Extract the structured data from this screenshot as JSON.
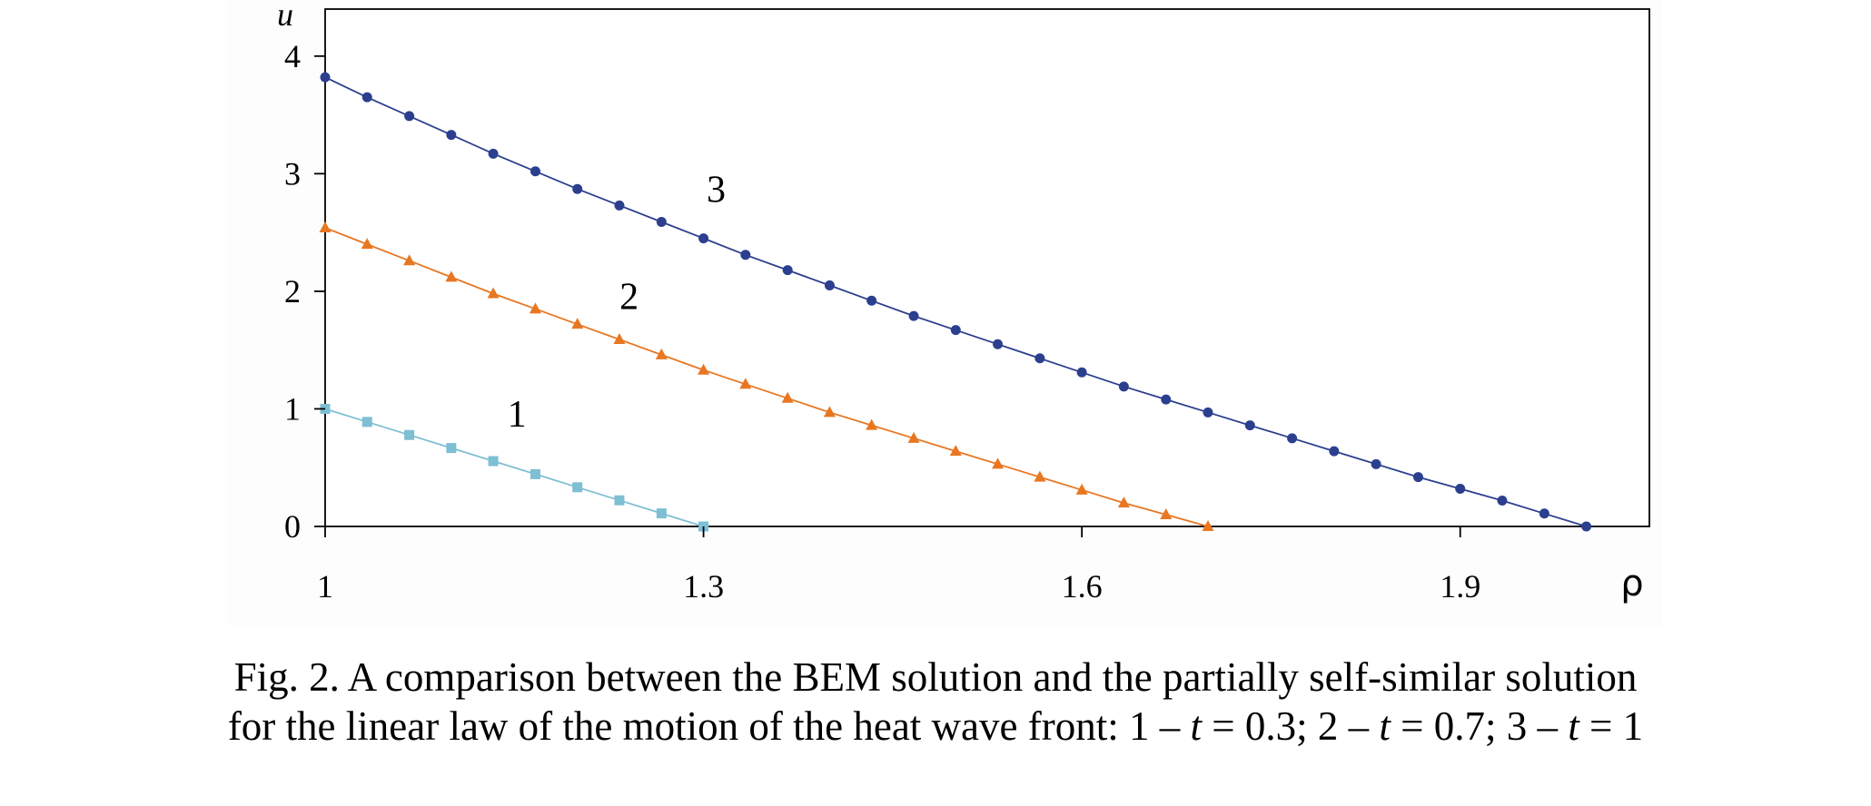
{
  "chart_data": {
    "type": "line",
    "title": "",
    "xlabel": "ρ",
    "ylabel": "u",
    "xlim": [
      1,
      2.05
    ],
    "ylim": [
      0,
      4.4
    ],
    "xticks": [
      1,
      1.3,
      1.6,
      1.9
    ],
    "xtick_labels": [
      "1",
      "1.3",
      "1.6",
      "1.9"
    ],
    "yticks": [
      0,
      1,
      2,
      3,
      4
    ],
    "ytick_labels": [
      "0",
      "1",
      "2",
      "3",
      "4"
    ],
    "grid": false,
    "legend": "none",
    "series": [
      {
        "label": "1",
        "color": "#7fbfd3",
        "marker": "square",
        "x": [
          1.0,
          1.0333,
          1.0667,
          1.1,
          1.1333,
          1.1667,
          1.2,
          1.2333,
          1.2667,
          1.3
        ],
        "y": [
          1.0,
          0.8889,
          0.7778,
          0.6667,
          0.5556,
          0.4444,
          0.3333,
          0.2222,
          0.1111,
          0.0
        ],
        "label_at": [
          1.152,
          0.85
        ]
      },
      {
        "label": "2",
        "color": "#e87722",
        "marker": "triangle",
        "x": [
          1.0,
          1.0333,
          1.0667,
          1.1,
          1.1333,
          1.1667,
          1.2,
          1.2333,
          1.2667,
          1.3,
          1.3333,
          1.3667,
          1.4,
          1.4333,
          1.4667,
          1.5,
          1.5333,
          1.5667,
          1.6,
          1.6333,
          1.6667,
          1.7
        ],
        "y": [
          2.54,
          2.4,
          2.26,
          2.12,
          1.98,
          1.85,
          1.72,
          1.59,
          1.46,
          1.33,
          1.21,
          1.09,
          0.97,
          0.86,
          0.75,
          0.64,
          0.53,
          0.42,
          0.31,
          0.2,
          0.1,
          0.0
        ],
        "label_at": [
          1.241,
          1.85
        ]
      },
      {
        "label": "3",
        "color": "#2c3f8f",
        "marker": "circle",
        "x": [
          1.0,
          1.0333,
          1.0667,
          1.1,
          1.1333,
          1.1667,
          1.2,
          1.2333,
          1.2667,
          1.3,
          1.3333,
          1.3667,
          1.4,
          1.4333,
          1.4667,
          1.5,
          1.5333,
          1.5667,
          1.6,
          1.6333,
          1.6667,
          1.7,
          1.7333,
          1.7667,
          1.8,
          1.8333,
          1.8667,
          1.9,
          1.9333,
          1.9667,
          2.0
        ],
        "y": [
          3.82,
          3.65,
          3.49,
          3.33,
          3.17,
          3.02,
          2.87,
          2.73,
          2.59,
          2.45,
          2.31,
          2.18,
          2.05,
          1.92,
          1.79,
          1.67,
          1.55,
          1.43,
          1.31,
          1.19,
          1.08,
          0.97,
          0.86,
          0.75,
          0.64,
          0.53,
          0.42,
          0.32,
          0.22,
          0.11,
          0.0
        ],
        "label_at": [
          1.31,
          2.76
        ]
      }
    ]
  },
  "caption": {
    "line1": "Fig. 2. A comparison between the BEM solution and the partially self-similar solution",
    "line2_prefix": "for the linear law of the motion of the heat wave front: 1 – ",
    "var_t": "t",
    "eq1": " = 0.3; 2 – ",
    "eq2": " = 0.7; 3 – ",
    "eq3": " = 1"
  }
}
